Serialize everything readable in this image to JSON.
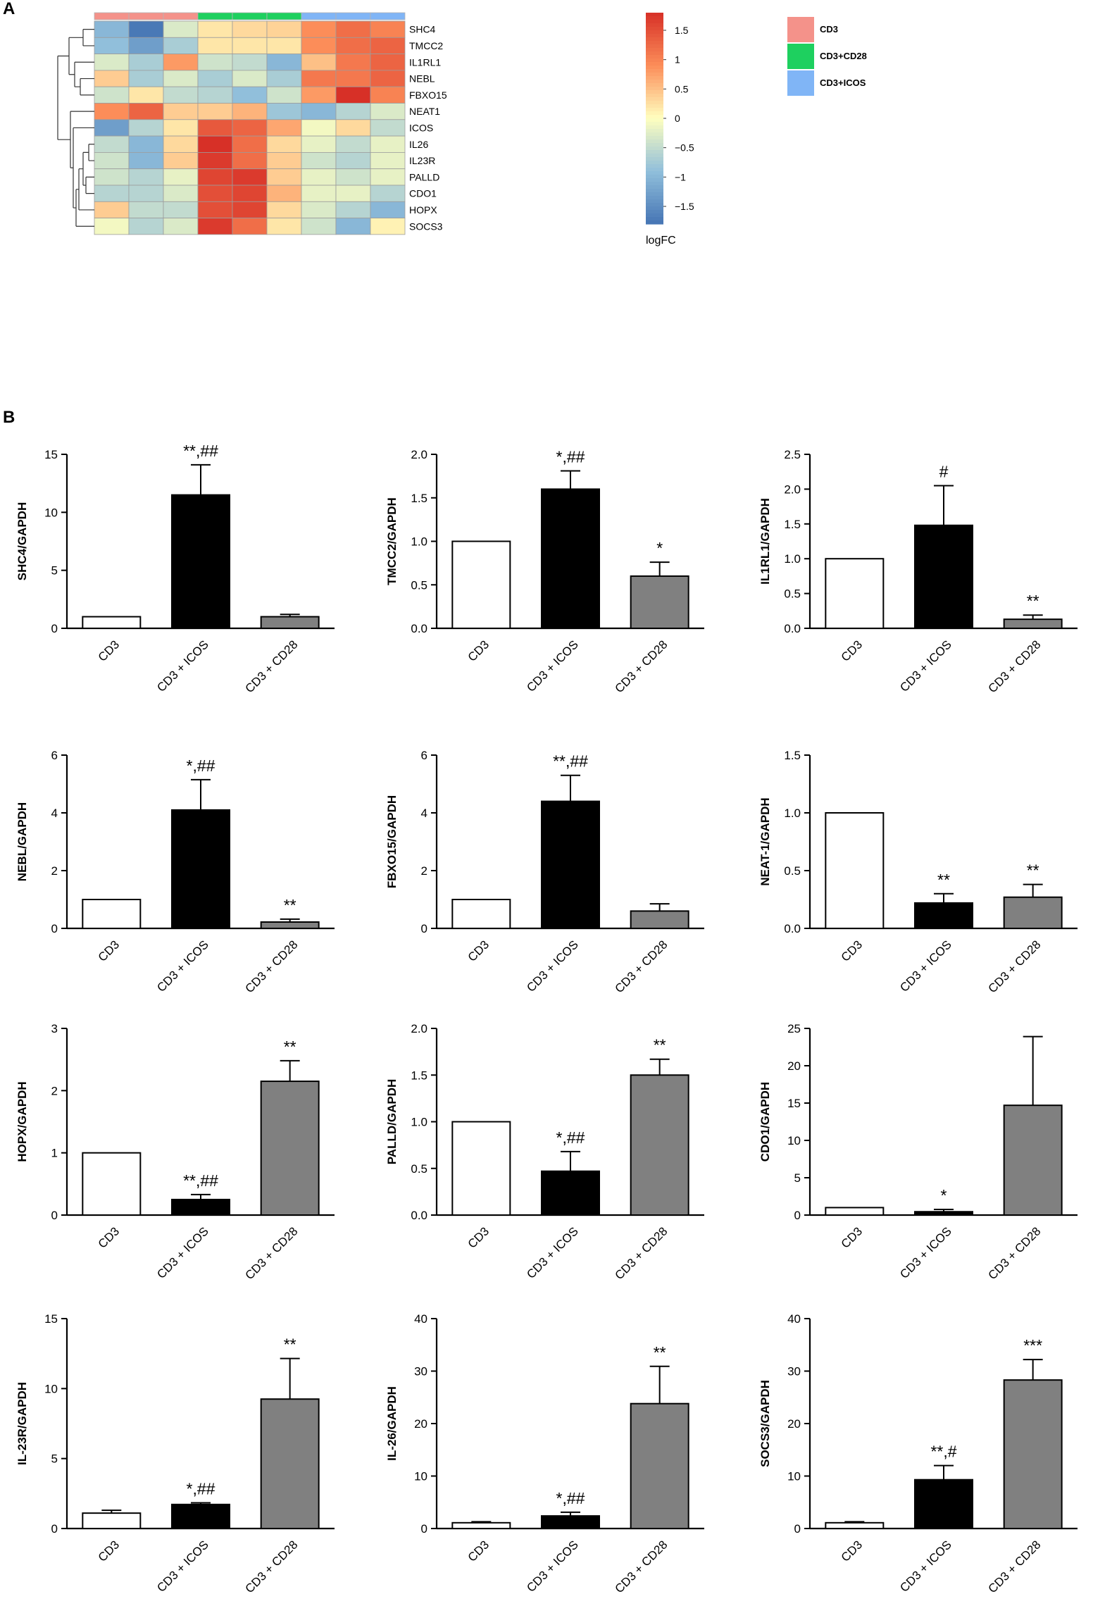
{
  "panels": {
    "a": "A",
    "b": "B"
  },
  "colors": {
    "CD3": "#f4928a",
    "CD3+CD28": "#1ed05f",
    "CD3+ICOS": "#80b5f6",
    "white_bar": "#ffffff",
    "black_bar": "#000000",
    "gray_bar": "#808080"
  },
  "chart_data": [
    {
      "type": "heatmap",
      "id": "heatmap",
      "rows": [
        "SHC4",
        "TMCC2",
        "IL1RL1",
        "NEBL",
        "FBXO15",
        "NEAT1",
        "ICOS",
        "IL26",
        "IL23R",
        "PALLD",
        "CDO1",
        "HOPX",
        "SOCS3"
      ],
      "column_groups": [
        "CD3",
        "CD3",
        "CD3",
        "CD3+CD28",
        "CD3+CD28",
        "CD3+CD28",
        "CD3+ICOS",
        "CD3+ICOS",
        "CD3+ICOS"
      ],
      "values": [
        [
          -1.0,
          -1.75,
          -0.3,
          0.2,
          0.3,
          0.35,
          0.9,
          1.2,
          1.0
        ],
        [
          -0.9,
          -1.3,
          -0.7,
          0.2,
          0.2,
          0.2,
          0.9,
          1.2,
          1.3
        ],
        [
          -0.3,
          -0.7,
          0.8,
          -0.4,
          -0.5,
          -1.0,
          0.5,
          1.1,
          1.3
        ],
        [
          0.4,
          -0.7,
          -0.3,
          -0.7,
          -0.3,
          -0.7,
          1.1,
          1.1,
          1.3
        ],
        [
          -0.4,
          0.2,
          -0.5,
          -0.6,
          -0.9,
          -0.4,
          0.8,
          1.8,
          1.0
        ],
        [
          0.9,
          1.3,
          0.4,
          0.4,
          0.6,
          -0.8,
          -1.0,
          -0.6,
          -0.3
        ],
        [
          -1.3,
          -0.6,
          0.2,
          1.4,
          1.3,
          0.7,
          -0.1,
          0.3,
          -0.5
        ],
        [
          -0.5,
          -1.0,
          0.3,
          1.8,
          1.2,
          0.3,
          -0.2,
          -0.5,
          -0.2
        ],
        [
          -0.4,
          -1.0,
          0.4,
          1.7,
          1.2,
          0.4,
          -0.4,
          -0.6,
          -0.2
        ],
        [
          -0.4,
          -0.6,
          -0.2,
          1.6,
          1.7,
          0.4,
          -0.2,
          -0.4,
          -0.2
        ],
        [
          -0.6,
          -0.6,
          -0.3,
          1.5,
          1.6,
          0.6,
          -0.2,
          -0.2,
          -0.6
        ],
        [
          0.4,
          -0.5,
          -0.5,
          1.5,
          1.6,
          0.3,
          -0.3,
          -0.6,
          -1.0
        ],
        [
          -0.1,
          -0.6,
          -0.3,
          1.7,
          1.2,
          0.2,
          -0.4,
          -1.0,
          0.1
        ]
      ],
      "colorbar": {
        "ticks": [
          "1.5",
          "1",
          "0.5",
          "0",
          "−0.5",
          "−1",
          "−1.5"
        ],
        "tick_values": [
          1.5,
          1,
          0.5,
          0,
          -0.5,
          -1,
          -1.5
        ],
        "range": [
          -1.8,
          1.8
        ],
        "label": "logFC"
      },
      "legend": [
        "CD3",
        "CD3+CD28",
        "CD3+ICOS"
      ]
    },
    {
      "type": "bar",
      "id": "shc4",
      "ylabel": "SHC4/GAPDH",
      "categories": [
        "CD3",
        "CD3 + ICOS",
        "CD3 + CD28"
      ],
      "values": [
        1,
        11.5,
        1
      ],
      "errors": [
        0,
        2.6,
        0.2
      ],
      "ylim": [
        0,
        15
      ],
      "yticks": [
        0,
        5,
        10,
        15
      ],
      "ytick_labels": [
        "0",
        "5",
        "10",
        "15"
      ],
      "annotations": [
        "",
        "**,##",
        ""
      ]
    },
    {
      "type": "bar",
      "id": "tmcc2",
      "ylabel": "TMCC2/GAPDH",
      "categories": [
        "CD3",
        "CD3 + ICOS",
        "CD3 + CD28"
      ],
      "values": [
        1,
        1.6,
        0.6
      ],
      "errors": [
        0,
        0.21,
        0.16
      ],
      "ylim": [
        0,
        2
      ],
      "yticks": [
        0,
        0.5,
        1,
        1.5,
        2
      ],
      "ytick_labels": [
        "0.0",
        "0.5",
        "1.0",
        "1.5",
        "2.0"
      ],
      "annotations": [
        "",
        "*,##",
        "*"
      ]
    },
    {
      "type": "bar",
      "id": "il1rl1",
      "ylabel": "IL1RL1/GAPDH",
      "categories": [
        "CD3",
        "CD3 + ICOS",
        "CD3 + CD28"
      ],
      "values": [
        1,
        1.48,
        0.13
      ],
      "errors": [
        0,
        0.57,
        0.06
      ],
      "ylim": [
        0,
        2.5
      ],
      "yticks": [
        0,
        0.5,
        1,
        1.5,
        2,
        2.5
      ],
      "ytick_labels": [
        "0.0",
        "0.5",
        "1.0",
        "1.5",
        "2.0",
        "2.5"
      ],
      "annotations": [
        "",
        "#",
        "**"
      ]
    },
    {
      "type": "bar",
      "id": "nebl",
      "ylabel": "NEBL/GAPDH",
      "categories": [
        "CD3",
        "CD3 + ICOS",
        "CD3 + CD28"
      ],
      "values": [
        1,
        4.1,
        0.22
      ],
      "errors": [
        0,
        1.05,
        0.1
      ],
      "ylim": [
        0,
        6
      ],
      "yticks": [
        0,
        2,
        4,
        6
      ],
      "ytick_labels": [
        "0",
        "2",
        "4",
        "6"
      ],
      "annotations": [
        "",
        "*,##",
        "**"
      ]
    },
    {
      "type": "bar",
      "id": "fbxo15",
      "ylabel": "FBXO15/GAPDH",
      "categories": [
        "CD3",
        "CD3 + ICOS",
        "CD3 + CD28"
      ],
      "values": [
        1,
        4.4,
        0.6
      ],
      "errors": [
        0,
        0.9,
        0.25
      ],
      "ylim": [
        0,
        6
      ],
      "yticks": [
        0,
        2,
        4,
        6
      ],
      "ytick_labels": [
        "0",
        "2",
        "4",
        "6"
      ],
      "annotations": [
        "",
        "**,##",
        ""
      ]
    },
    {
      "type": "bar",
      "id": "neat1",
      "ylabel": "NEAT-1/GAPDH",
      "categories": [
        "CD3",
        "CD3 + ICOS",
        "CD3 + CD28"
      ],
      "values": [
        1,
        0.22,
        0.27
      ],
      "errors": [
        0,
        0.08,
        0.11
      ],
      "ylim": [
        0,
        1.5
      ],
      "yticks": [
        0,
        0.5,
        1,
        1.5
      ],
      "ytick_labels": [
        "0.0",
        "0.5",
        "1.0",
        "1.5"
      ],
      "annotations": [
        "",
        "**",
        "**"
      ]
    },
    {
      "type": "bar",
      "id": "hopx",
      "ylabel": "HOPX/GAPDH",
      "categories": [
        "CD3",
        "CD3 + ICOS",
        "CD3 + CD28"
      ],
      "values": [
        1,
        0.25,
        2.15
      ],
      "errors": [
        0,
        0.08,
        0.33
      ],
      "ylim": [
        0,
        3
      ],
      "yticks": [
        0,
        1,
        2,
        3
      ],
      "ytick_labels": [
        "0",
        "1",
        "2",
        "3"
      ],
      "annotations": [
        "",
        "**,##",
        "**"
      ]
    },
    {
      "type": "bar",
      "id": "palld",
      "ylabel": "PALLD/GAPDH",
      "categories": [
        "CD3",
        "CD3 + ICOS",
        "CD3 + CD28"
      ],
      "values": [
        1,
        0.47,
        1.5
      ],
      "errors": [
        0,
        0.21,
        0.17
      ],
      "ylim": [
        0,
        2
      ],
      "yticks": [
        0,
        0.5,
        1,
        1.5,
        2
      ],
      "ytick_labels": [
        "0.0",
        "0.5",
        "1.0",
        "1.5",
        "2.0"
      ],
      "annotations": [
        "",
        "*,##",
        "**"
      ]
    },
    {
      "type": "bar",
      "id": "cdo1",
      "ylabel": "CDO1/GAPDH",
      "categories": [
        "CD3",
        "CD3 + ICOS",
        "CD3 + CD28"
      ],
      "values": [
        1,
        0.45,
        14.7
      ],
      "errors": [
        0,
        0.3,
        9.2
      ],
      "ylim": [
        0,
        25
      ],
      "yticks": [
        0,
        5,
        10,
        15,
        20,
        25
      ],
      "ytick_labels": [
        "0",
        "5",
        "10",
        "15",
        "20",
        "25"
      ],
      "annotations": [
        "",
        "*",
        ""
      ]
    },
    {
      "type": "bar",
      "id": "il23r",
      "ylabel": "IL-23R/GAPDH",
      "categories": [
        "CD3",
        "CD3 + ICOS",
        "CD3 + CD28"
      ],
      "values": [
        1.1,
        1.72,
        9.25
      ],
      "errors": [
        0.2,
        0.12,
        2.9
      ],
      "ylim": [
        0,
        15
      ],
      "yticks": [
        0,
        5,
        10,
        15
      ],
      "ytick_labels": [
        "0",
        "5",
        "10",
        "15"
      ],
      "annotations": [
        "",
        "*,##",
        "**"
      ]
    },
    {
      "type": "bar",
      "id": "il26",
      "ylabel": "IL-26/GAPDH",
      "categories": [
        "CD3",
        "CD3 + ICOS",
        "CD3 + CD28"
      ],
      "values": [
        1.1,
        2.4,
        23.8
      ],
      "errors": [
        0.2,
        0.7,
        7.1
      ],
      "ylim": [
        0,
        40
      ],
      "yticks": [
        0,
        10,
        20,
        30,
        40
      ],
      "ytick_labels": [
        "0",
        "10",
        "20",
        "30",
        "40"
      ],
      "annotations": [
        "",
        "*,##",
        "**"
      ]
    },
    {
      "type": "bar",
      "id": "socs3",
      "ylabel": "SOCS3/GAPDH",
      "categories": [
        "CD3",
        "CD3 + ICOS",
        "CD3 + CD28"
      ],
      "values": [
        1.1,
        9.3,
        28.3
      ],
      "errors": [
        0.2,
        2.7,
        3.9
      ],
      "ylim": [
        0,
        40
      ],
      "yticks": [
        0,
        10,
        20,
        30,
        40
      ],
      "ytick_labels": [
        "0",
        "10",
        "20",
        "30",
        "40"
      ],
      "annotations": [
        "",
        "**,#",
        "***"
      ]
    }
  ]
}
